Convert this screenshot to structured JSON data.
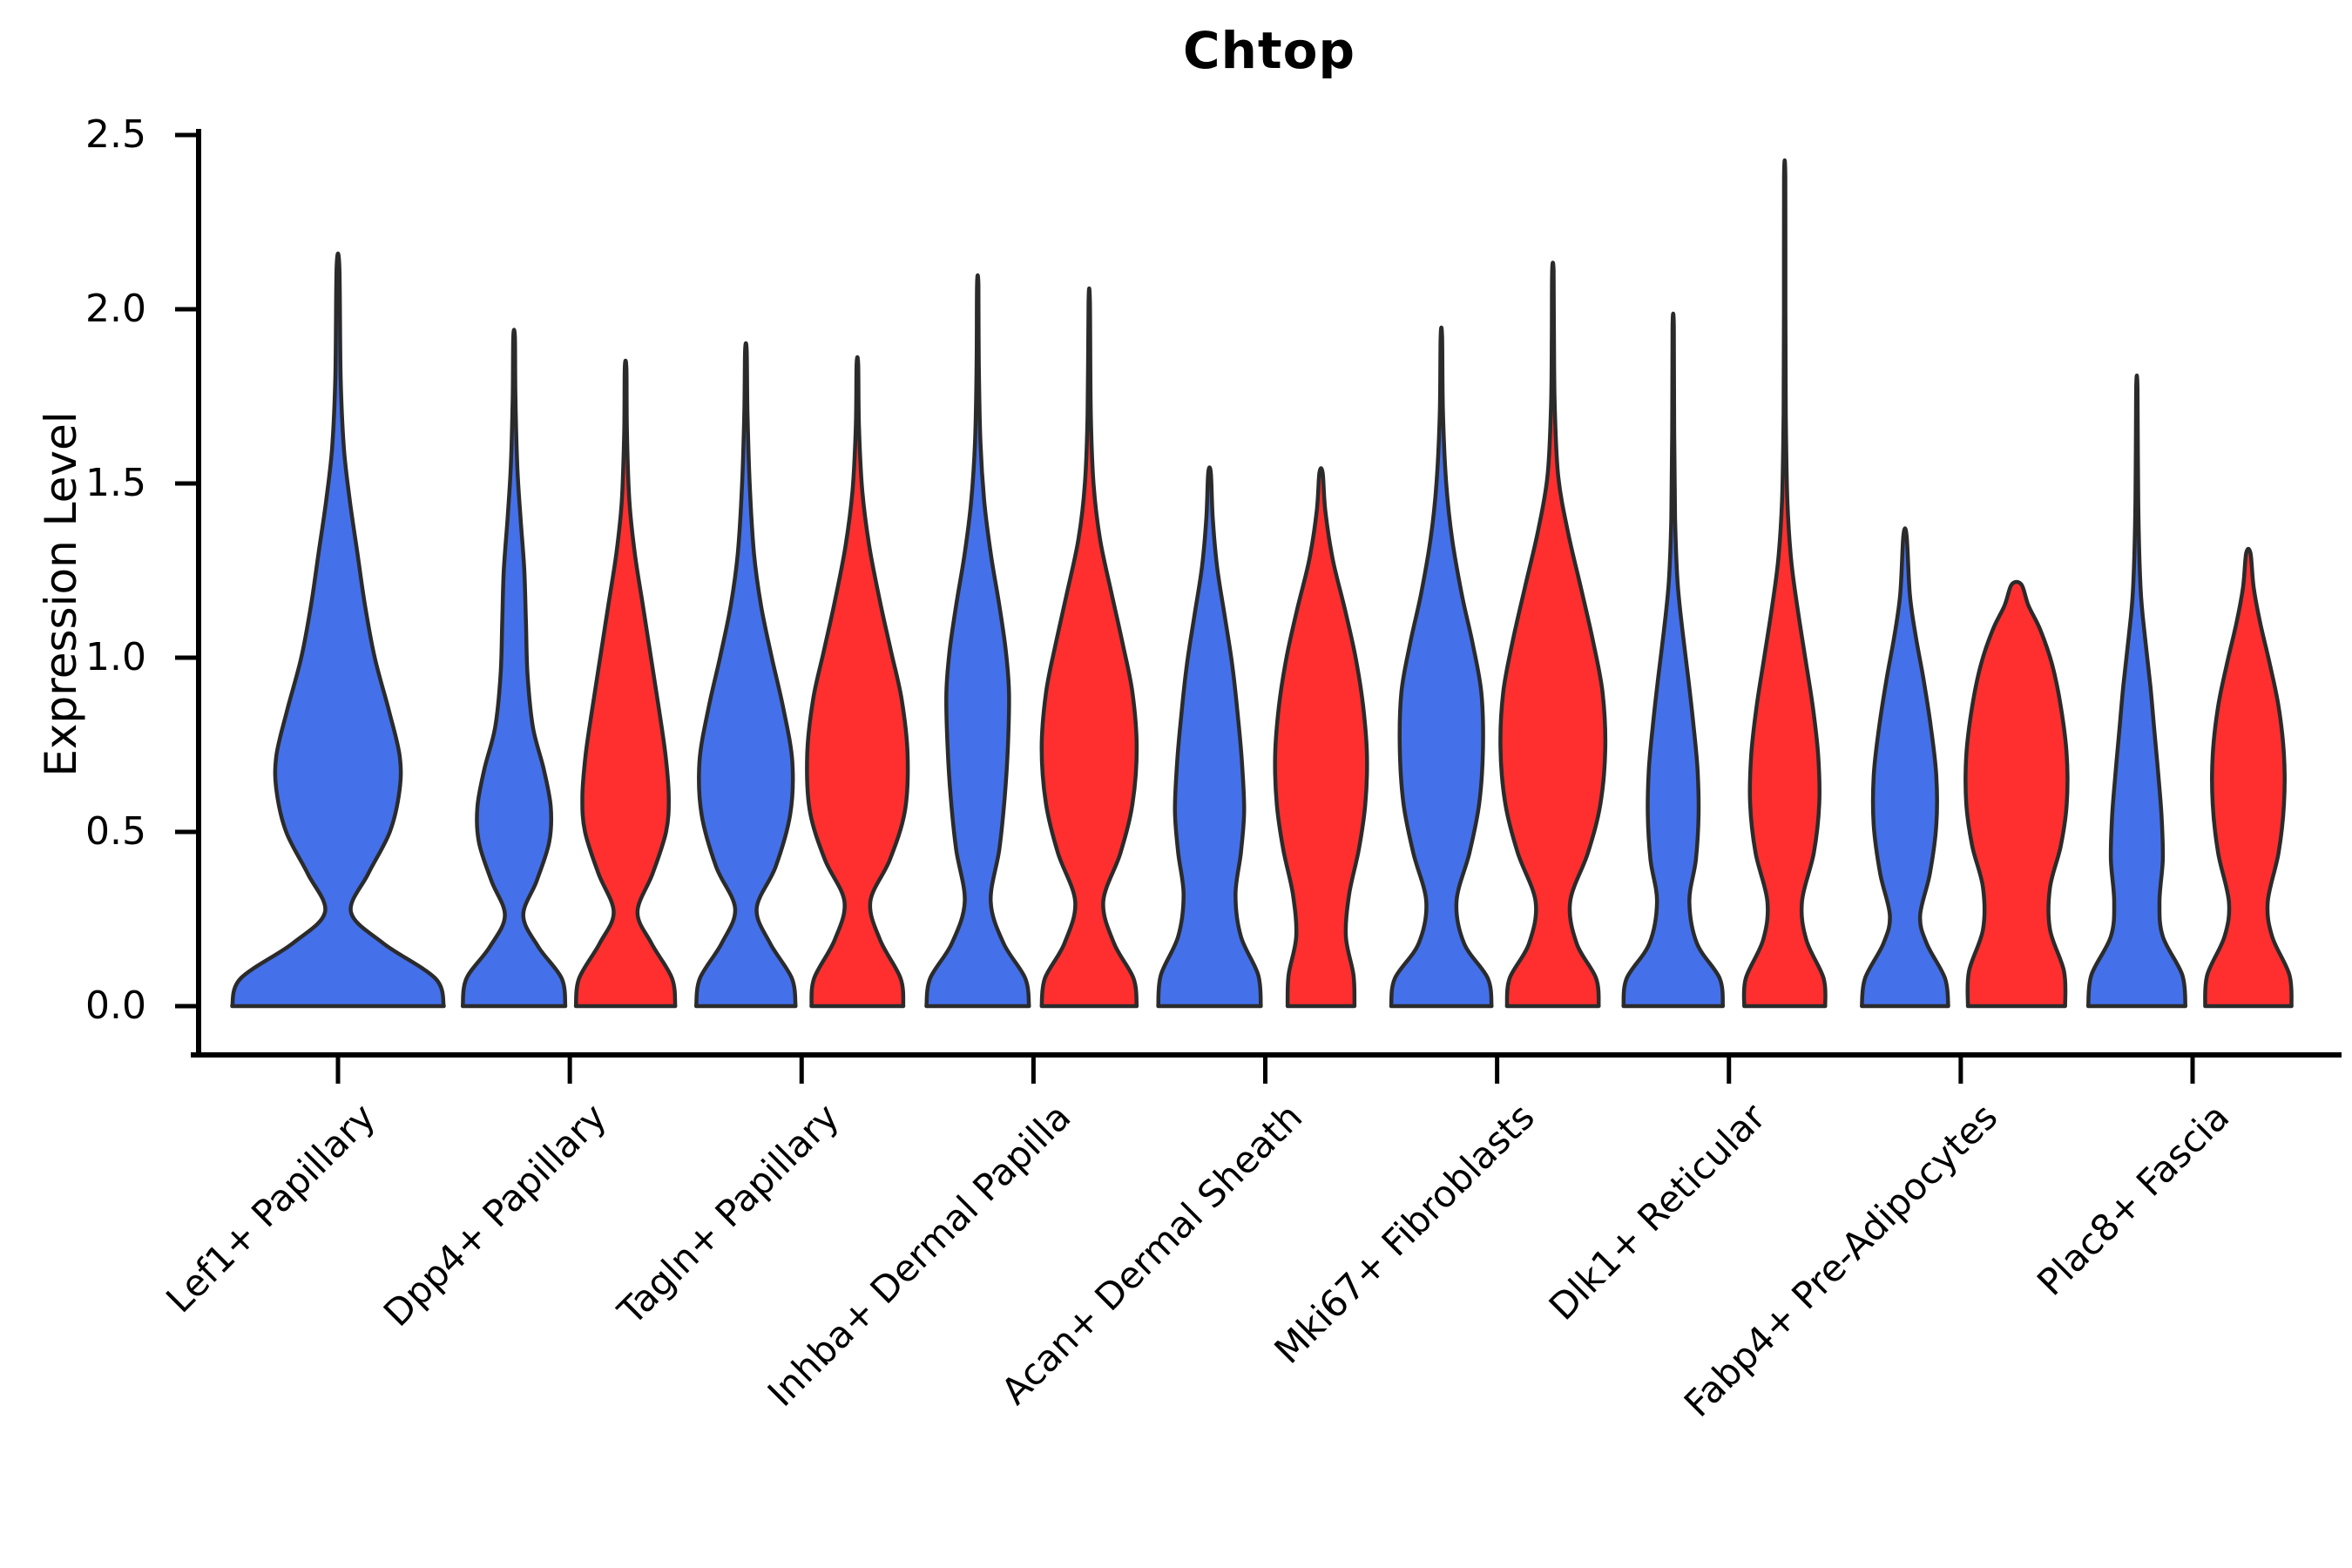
{
  "figure": {
    "title": "Chtop"
  },
  "y_axis": {
    "label": "Expression Level",
    "tick_labels": [
      "0.0",
      "0.5",
      "1.0",
      "1.5",
      "2.0",
      "2.5"
    ]
  },
  "colors": {
    "blue": "#4470EA",
    "red": "#FF2F2F",
    "outline": "#2B2B2B",
    "text": "#000000"
  },
  "chart_data": {
    "type": "violin",
    "title": "Chtop",
    "xlabel": "",
    "ylabel": "Expression Level",
    "ylim": [
      0,
      2.5
    ],
    "yticks": [
      0.0,
      0.5,
      1.0,
      1.5,
      2.0,
      2.5
    ],
    "grid": false,
    "legend": "none",
    "categories": [
      "Lef1+ Papillary",
      "Dpp4+ Papillary",
      "Tagln+ Papillary",
      "Inhba+ Dermal Papilla",
      "Acan+ Dermal Sheath",
      "Mki67+ Fibroblasts",
      "Dlk1+ Reticular",
      "Fabp4+ Pre-Adipocytes",
      "Plac8+ Fascia"
    ],
    "groups": [
      {
        "name": "blue",
        "color": "#4470EA"
      },
      {
        "name": "red",
        "color": "#FF2F2F"
      }
    ],
    "violins": [
      {
        "category": "Lef1+ Papillary",
        "group": "blue",
        "max_value": 2.12,
        "profile": [
          [
            0,
            0.98
          ],
          [
            0.08,
            0.9
          ],
          [
            0.18,
            0.42
          ],
          [
            0.27,
            0.12
          ],
          [
            0.38,
            0.28
          ],
          [
            0.5,
            0.48
          ],
          [
            0.62,
            0.57
          ],
          [
            0.72,
            0.57
          ],
          [
            0.85,
            0.47
          ],
          [
            1.0,
            0.34
          ],
          [
            1.15,
            0.25
          ],
          [
            1.3,
            0.18
          ],
          [
            1.45,
            0.11
          ],
          [
            1.6,
            0.055
          ],
          [
            1.8,
            0.025
          ],
          [
            2.12,
            0.013
          ]
        ]
      },
      {
        "category": "Dpp4+ Papillary",
        "group": "blue",
        "max_value": 1.92,
        "profile": [
          [
            0,
            0.95
          ],
          [
            0.08,
            0.88
          ],
          [
            0.17,
            0.45
          ],
          [
            0.26,
            0.17
          ],
          [
            0.36,
            0.42
          ],
          [
            0.47,
            0.65
          ],
          [
            0.57,
            0.68
          ],
          [
            0.68,
            0.55
          ],
          [
            0.8,
            0.35
          ],
          [
            0.95,
            0.25
          ],
          [
            1.1,
            0.22
          ],
          [
            1.25,
            0.19
          ],
          [
            1.4,
            0.12
          ],
          [
            1.55,
            0.06
          ],
          [
            1.75,
            0.025
          ],
          [
            1.92,
            0.015
          ]
        ]
      },
      {
        "category": "Dpp4+ Papillary",
        "group": "red",
        "max_value": 1.83,
        "profile": [
          [
            0,
            0.92
          ],
          [
            0.08,
            0.86
          ],
          [
            0.18,
            0.48
          ],
          [
            0.27,
            0.22
          ],
          [
            0.38,
            0.5
          ],
          [
            0.5,
            0.75
          ],
          [
            0.6,
            0.8
          ],
          [
            0.72,
            0.74
          ],
          [
            0.85,
            0.62
          ],
          [
            1.0,
            0.47
          ],
          [
            1.15,
            0.32
          ],
          [
            1.3,
            0.17
          ],
          [
            1.45,
            0.07
          ],
          [
            1.65,
            0.025
          ],
          [
            1.83,
            0.015
          ]
        ]
      },
      {
        "category": "Tagln+ Papillary",
        "group": "blue",
        "max_value": 1.88,
        "profile": [
          [
            0,
            0.92
          ],
          [
            0.08,
            0.85
          ],
          [
            0.18,
            0.45
          ],
          [
            0.28,
            0.2
          ],
          [
            0.4,
            0.55
          ],
          [
            0.55,
            0.82
          ],
          [
            0.7,
            0.86
          ],
          [
            0.85,
            0.7
          ],
          [
            1.0,
            0.48
          ],
          [
            1.15,
            0.28
          ],
          [
            1.3,
            0.15
          ],
          [
            1.5,
            0.07
          ],
          [
            1.7,
            0.03
          ],
          [
            1.88,
            0.015
          ]
        ]
      },
      {
        "category": "Tagln+ Papillary",
        "group": "red",
        "max_value": 1.84,
        "profile": [
          [
            0,
            0.85
          ],
          [
            0.08,
            0.8
          ],
          [
            0.19,
            0.42
          ],
          [
            0.3,
            0.24
          ],
          [
            0.42,
            0.6
          ],
          [
            0.56,
            0.88
          ],
          [
            0.72,
            0.93
          ],
          [
            0.88,
            0.82
          ],
          [
            1.02,
            0.62
          ],
          [
            1.16,
            0.42
          ],
          [
            1.32,
            0.22
          ],
          [
            1.48,
            0.09
          ],
          [
            1.66,
            0.03
          ],
          [
            1.84,
            0.015
          ]
        ]
      },
      {
        "category": "Inhba+ Dermal Papilla",
        "group": "blue",
        "max_value": 2.07,
        "profile": [
          [
            0,
            0.95
          ],
          [
            0.08,
            0.88
          ],
          [
            0.18,
            0.48
          ],
          [
            0.3,
            0.24
          ],
          [
            0.45,
            0.4
          ],
          [
            0.6,
            0.5
          ],
          [
            0.75,
            0.56
          ],
          [
            0.9,
            0.58
          ],
          [
            1.02,
            0.52
          ],
          [
            1.15,
            0.4
          ],
          [
            1.3,
            0.24
          ],
          [
            1.45,
            0.12
          ],
          [
            1.62,
            0.05
          ],
          [
            1.85,
            0.02
          ],
          [
            2.07,
            0.013
          ]
        ]
      },
      {
        "category": "Inhba+ Dermal Papilla",
        "group": "red",
        "max_value": 2.02,
        "profile": [
          [
            0,
            0.88
          ],
          [
            0.08,
            0.82
          ],
          [
            0.18,
            0.46
          ],
          [
            0.3,
            0.26
          ],
          [
            0.44,
            0.58
          ],
          [
            0.58,
            0.8
          ],
          [
            0.74,
            0.88
          ],
          [
            0.9,
            0.8
          ],
          [
            1.04,
            0.62
          ],
          [
            1.18,
            0.42
          ],
          [
            1.34,
            0.2
          ],
          [
            1.5,
            0.08
          ],
          [
            1.7,
            0.03
          ],
          [
            2.02,
            0.013
          ]
        ]
      },
      {
        "category": "Acan+ Dermal Sheath",
        "group": "blue",
        "max_value": 1.53,
        "profile": [
          [
            0,
            0.95
          ],
          [
            0.09,
            0.9
          ],
          [
            0.2,
            0.58
          ],
          [
            0.32,
            0.48
          ],
          [
            0.44,
            0.58
          ],
          [
            0.56,
            0.64
          ],
          [
            0.7,
            0.6
          ],
          [
            0.84,
            0.52
          ],
          [
            0.98,
            0.42
          ],
          [
            1.12,
            0.28
          ],
          [
            1.26,
            0.14
          ],
          [
            1.4,
            0.06
          ],
          [
            1.53,
            0.025
          ]
        ]
      },
      {
        "category": "Acan+ Dermal Sheath",
        "group": "red",
        "max_value": 1.53,
        "profile": [
          [
            0,
            0.62
          ],
          [
            0.09,
            0.6
          ],
          [
            0.2,
            0.46
          ],
          [
            0.32,
            0.52
          ],
          [
            0.45,
            0.7
          ],
          [
            0.58,
            0.82
          ],
          [
            0.72,
            0.85
          ],
          [
            0.86,
            0.78
          ],
          [
            1.0,
            0.64
          ],
          [
            1.14,
            0.44
          ],
          [
            1.28,
            0.22
          ],
          [
            1.42,
            0.08
          ],
          [
            1.53,
            0.03
          ]
        ]
      },
      {
        "category": "Mki67+ Fibroblasts",
        "group": "blue",
        "max_value": 1.92,
        "profile": [
          [
            0,
            0.93
          ],
          [
            0.08,
            0.86
          ],
          [
            0.18,
            0.42
          ],
          [
            0.3,
            0.28
          ],
          [
            0.44,
            0.52
          ],
          [
            0.58,
            0.7
          ],
          [
            0.74,
            0.77
          ],
          [
            0.9,
            0.74
          ],
          [
            1.04,
            0.58
          ],
          [
            1.18,
            0.38
          ],
          [
            1.34,
            0.2
          ],
          [
            1.5,
            0.09
          ],
          [
            1.7,
            0.03
          ],
          [
            1.92,
            0.014
          ]
        ]
      },
      {
        "category": "Mki67+ Fibroblasts",
        "group": "red",
        "max_value": 2.11,
        "profile": [
          [
            0,
            0.85
          ],
          [
            0.08,
            0.8
          ],
          [
            0.18,
            0.44
          ],
          [
            0.3,
            0.32
          ],
          [
            0.44,
            0.65
          ],
          [
            0.58,
            0.88
          ],
          [
            0.74,
            0.97
          ],
          [
            0.9,
            0.92
          ],
          [
            1.05,
            0.74
          ],
          [
            1.2,
            0.52
          ],
          [
            1.36,
            0.28
          ],
          [
            1.52,
            0.1
          ],
          [
            1.72,
            0.035
          ],
          [
            1.92,
            0.02
          ],
          [
            2.11,
            0.014
          ]
        ]
      },
      {
        "category": "Dlk1+ Reticular",
        "group": "blue",
        "max_value": 1.95,
        "profile": [
          [
            0,
            0.92
          ],
          [
            0.08,
            0.86
          ],
          [
            0.18,
            0.44
          ],
          [
            0.3,
            0.3
          ],
          [
            0.42,
            0.42
          ],
          [
            0.55,
            0.47
          ],
          [
            0.68,
            0.45
          ],
          [
            0.8,
            0.38
          ],
          [
            0.94,
            0.28
          ],
          [
            1.08,
            0.17
          ],
          [
            1.22,
            0.08
          ],
          [
            1.4,
            0.035
          ],
          [
            1.65,
            0.018
          ],
          [
            1.95,
            0.012
          ]
        ]
      },
      {
        "category": "Dlk1+ Reticular",
        "group": "red",
        "max_value": 2.38,
        "profile": [
          [
            0,
            0.75
          ],
          [
            0.08,
            0.72
          ],
          [
            0.19,
            0.4
          ],
          [
            0.3,
            0.32
          ],
          [
            0.44,
            0.54
          ],
          [
            0.58,
            0.64
          ],
          [
            0.72,
            0.62
          ],
          [
            0.86,
            0.52
          ],
          [
            1.0,
            0.38
          ],
          [
            1.14,
            0.24
          ],
          [
            1.28,
            0.12
          ],
          [
            1.45,
            0.05
          ],
          [
            1.7,
            0.02
          ],
          [
            2.0,
            0.013
          ],
          [
            2.38,
            0.012
          ]
        ]
      },
      {
        "category": "Fabp4+ Pre-Adipocytes",
        "group": "blue",
        "max_value": 1.35,
        "profile": [
          [
            0,
            0.8
          ],
          [
            0.08,
            0.74
          ],
          [
            0.18,
            0.4
          ],
          [
            0.26,
            0.28
          ],
          [
            0.38,
            0.46
          ],
          [
            0.52,
            0.58
          ],
          [
            0.66,
            0.58
          ],
          [
            0.8,
            0.48
          ],
          [
            0.94,
            0.34
          ],
          [
            1.06,
            0.2
          ],
          [
            1.18,
            0.09
          ],
          [
            1.35,
            0.03
          ]
        ]
      },
      {
        "category": "Fabp4+ Pre-Adipocytes",
        "group": "red",
        "max_value": 1.21,
        "profile": [
          [
            0,
            0.9
          ],
          [
            0.1,
            0.88
          ],
          [
            0.22,
            0.62
          ],
          [
            0.34,
            0.62
          ],
          [
            0.46,
            0.82
          ],
          [
            0.58,
            0.93
          ],
          [
            0.72,
            0.93
          ],
          [
            0.86,
            0.82
          ],
          [
            0.98,
            0.66
          ],
          [
            1.08,
            0.44
          ],
          [
            1.15,
            0.22
          ],
          [
            1.21,
            0.09
          ]
        ]
      },
      {
        "category": "Plac8+ Fascia",
        "group": "blue",
        "max_value": 1.77,
        "profile": [
          [
            0,
            0.9
          ],
          [
            0.09,
            0.84
          ],
          [
            0.2,
            0.48
          ],
          [
            0.3,
            0.42
          ],
          [
            0.42,
            0.48
          ],
          [
            0.54,
            0.46
          ],
          [
            0.66,
            0.4
          ],
          [
            0.78,
            0.33
          ],
          [
            0.92,
            0.25
          ],
          [
            1.06,
            0.15
          ],
          [
            1.2,
            0.07
          ],
          [
            1.45,
            0.025
          ],
          [
            1.77,
            0.013
          ]
        ]
      },
      {
        "category": "Plac8+ Fascia",
        "group": "red",
        "max_value": 1.3,
        "profile": [
          [
            0,
            0.8
          ],
          [
            0.09,
            0.76
          ],
          [
            0.2,
            0.44
          ],
          [
            0.3,
            0.36
          ],
          [
            0.44,
            0.56
          ],
          [
            0.58,
            0.66
          ],
          [
            0.72,
            0.66
          ],
          [
            0.86,
            0.56
          ],
          [
            0.98,
            0.4
          ],
          [
            1.1,
            0.22
          ],
          [
            1.2,
            0.1
          ],
          [
            1.3,
            0.04
          ]
        ]
      }
    ]
  }
}
